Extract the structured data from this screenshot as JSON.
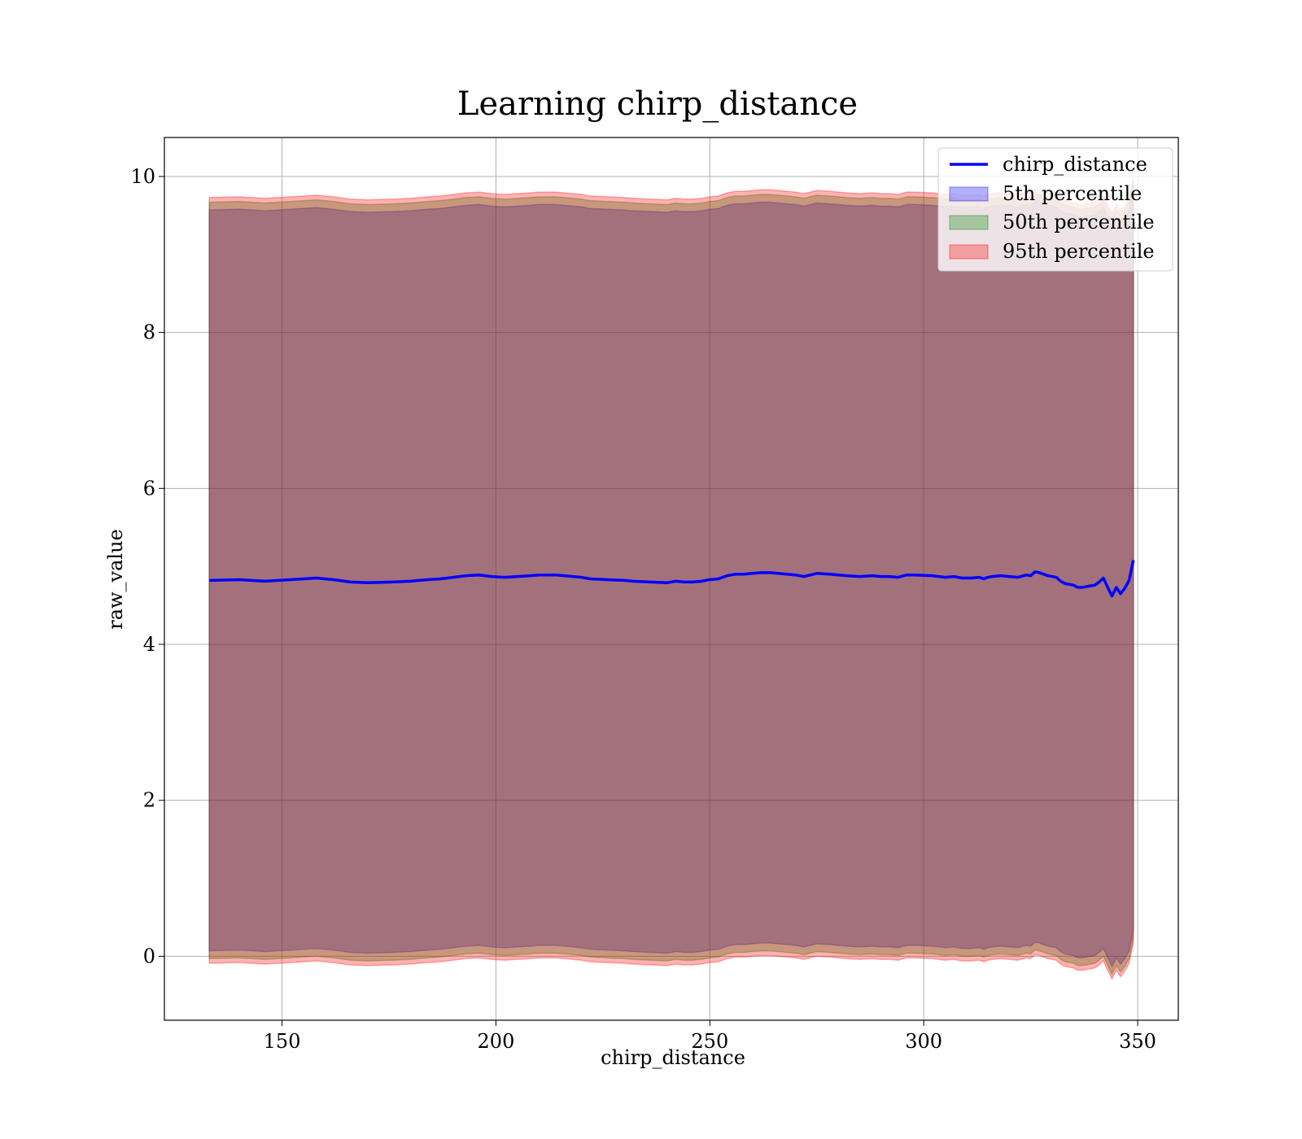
{
  "chart_data": {
    "type": "area",
    "title": "Learning chirp_distance",
    "xlabel": "chirp_distance",
    "ylabel": "raw_value",
    "xlim": [
      122.5,
      359.5
    ],
    "ylim": [
      -0.82,
      10.5
    ],
    "xticks": [
      150,
      200,
      250,
      300,
      350
    ],
    "yticks": [
      0,
      2,
      4,
      6,
      8,
      10
    ],
    "grid": true,
    "legend_position": "top-right",
    "x": [
      133,
      140,
      146,
      152,
      158,
      162,
      166,
      170,
      176,
      180,
      184,
      187,
      190,
      193,
      196,
      199,
      202,
      205,
      208,
      210,
      214,
      216,
      218,
      220,
      222,
      226,
      230,
      232,
      236,
      240,
      242,
      244,
      246,
      248,
      250,
      252,
      254,
      256,
      258,
      260,
      262,
      264,
      266,
      268,
      270,
      272,
      275,
      278,
      282,
      285,
      288,
      290,
      292,
      294,
      296,
      298,
      302,
      305,
      307,
      309,
      311,
      313,
      314,
      315,
      316,
      318,
      320,
      322,
      324,
      325,
      326,
      327,
      329,
      331,
      332,
      333,
      335,
      336,
      337,
      338,
      339,
      340,
      341,
      342,
      343,
      344,
      345,
      346,
      347,
      348,
      349
    ],
    "series": [
      {
        "name": "chirp_distance",
        "kind": "line",
        "color": "#0000ff",
        "values": [
          4.82,
          4.83,
          4.81,
          4.83,
          4.85,
          4.83,
          4.8,
          4.79,
          4.8,
          4.81,
          4.83,
          4.84,
          4.86,
          4.88,
          4.89,
          4.87,
          4.86,
          4.87,
          4.88,
          4.89,
          4.89,
          4.88,
          4.87,
          4.86,
          4.84,
          4.83,
          4.82,
          4.81,
          4.8,
          4.79,
          4.81,
          4.8,
          4.8,
          4.81,
          4.83,
          4.84,
          4.88,
          4.9,
          4.9,
          4.91,
          4.92,
          4.92,
          4.91,
          4.9,
          4.89,
          4.87,
          4.91,
          4.9,
          4.88,
          4.87,
          4.88,
          4.87,
          4.87,
          4.86,
          4.89,
          4.89,
          4.88,
          4.86,
          4.87,
          4.85,
          4.85,
          4.86,
          4.84,
          4.86,
          4.87,
          4.88,
          4.87,
          4.86,
          4.89,
          4.88,
          4.93,
          4.92,
          4.88,
          4.86,
          4.81,
          4.78,
          4.76,
          4.73,
          4.73,
          4.74,
          4.75,
          4.76,
          4.8,
          4.85,
          4.73,
          4.62,
          4.73,
          4.65,
          4.72,
          4.82,
          5.08
        ]
      },
      {
        "name": "5th percentile",
        "kind": "band",
        "color": "#0000ff",
        "lower": [
          0.07,
          0.08,
          0.06,
          0.08,
          0.1,
          0.08,
          0.05,
          0.04,
          0.05,
          0.06,
          0.08,
          0.09,
          0.11,
          0.13,
          0.14,
          0.12,
          0.11,
          0.12,
          0.13,
          0.14,
          0.14,
          0.13,
          0.12,
          0.11,
          0.09,
          0.08,
          0.07,
          0.06,
          0.05,
          0.04,
          0.06,
          0.05,
          0.05,
          0.06,
          0.08,
          0.09,
          0.13,
          0.15,
          0.15,
          0.16,
          0.17,
          0.17,
          0.16,
          0.15,
          0.14,
          0.12,
          0.16,
          0.15,
          0.13,
          0.12,
          0.13,
          0.12,
          0.12,
          0.11,
          0.14,
          0.14,
          0.13,
          0.11,
          0.12,
          0.1,
          0.1,
          0.11,
          0.09,
          0.11,
          0.12,
          0.13,
          0.12,
          0.11,
          0.14,
          0.13,
          0.18,
          0.17,
          0.13,
          0.11,
          0.06,
          0.03,
          0.01,
          -0.02,
          -0.02,
          -0.01,
          0.0,
          0.01,
          0.05,
          0.1,
          -0.02,
          -0.13,
          -0.02,
          -0.1,
          -0.03,
          0.07,
          0.33
        ],
        "upper": [
          9.57,
          9.58,
          9.56,
          9.58,
          9.6,
          9.58,
          9.55,
          9.54,
          9.55,
          9.56,
          9.58,
          9.59,
          9.61,
          9.63,
          9.64,
          9.62,
          9.61,
          9.62,
          9.63,
          9.64,
          9.64,
          9.63,
          9.62,
          9.61,
          9.59,
          9.58,
          9.57,
          9.56,
          9.55,
          9.54,
          9.56,
          9.55,
          9.55,
          9.56,
          9.58,
          9.59,
          9.63,
          9.65,
          9.65,
          9.66,
          9.67,
          9.67,
          9.66,
          9.65,
          9.64,
          9.62,
          9.66,
          9.65,
          9.63,
          9.62,
          9.63,
          9.62,
          9.62,
          9.61,
          9.64,
          9.64,
          9.63,
          9.61,
          9.62,
          9.6,
          9.6,
          9.61,
          9.59,
          9.61,
          9.62,
          9.63,
          9.62,
          9.61,
          9.64,
          9.63,
          9.68,
          9.67,
          9.63,
          9.61,
          9.56,
          9.53,
          9.51,
          9.48,
          9.48,
          9.49,
          9.5,
          9.51,
          9.55,
          9.6,
          9.48,
          9.37,
          9.48,
          9.4,
          9.47,
          9.57,
          9.83
        ]
      },
      {
        "name": "50th percentile",
        "kind": "band",
        "color": "#008000",
        "lower": [
          -0.03,
          -0.02,
          -0.04,
          -0.02,
          0.0,
          -0.02,
          -0.05,
          -0.06,
          -0.05,
          -0.04,
          -0.02,
          -0.01,
          0.01,
          0.03,
          0.04,
          0.02,
          0.01,
          0.02,
          0.03,
          0.04,
          0.04,
          0.03,
          0.02,
          0.01,
          -0.01,
          -0.02,
          -0.03,
          -0.04,
          -0.05,
          -0.06,
          -0.04,
          -0.05,
          -0.05,
          -0.04,
          -0.02,
          -0.01,
          0.03,
          0.05,
          0.05,
          0.06,
          0.07,
          0.07,
          0.06,
          0.05,
          0.04,
          0.02,
          0.06,
          0.05,
          0.03,
          0.02,
          0.03,
          0.02,
          0.02,
          0.01,
          0.04,
          0.04,
          0.03,
          0.01,
          0.02,
          0.0,
          0.0,
          0.01,
          -0.01,
          0.01,
          0.02,
          0.03,
          0.02,
          0.01,
          0.04,
          0.03,
          0.08,
          0.07,
          0.03,
          0.01,
          -0.04,
          -0.07,
          -0.09,
          -0.12,
          -0.12,
          -0.11,
          -0.1,
          -0.09,
          -0.05,
          0.0,
          -0.12,
          -0.23,
          -0.12,
          -0.2,
          -0.13,
          -0.03,
          0.23
        ],
        "upper": [
          9.67,
          9.68,
          9.66,
          9.68,
          9.7,
          9.68,
          9.65,
          9.64,
          9.65,
          9.66,
          9.68,
          9.69,
          9.71,
          9.73,
          9.74,
          9.72,
          9.71,
          9.72,
          9.73,
          9.74,
          9.74,
          9.73,
          9.72,
          9.71,
          9.69,
          9.68,
          9.67,
          9.66,
          9.65,
          9.64,
          9.66,
          9.65,
          9.65,
          9.66,
          9.68,
          9.69,
          9.73,
          9.75,
          9.75,
          9.76,
          9.77,
          9.77,
          9.76,
          9.75,
          9.74,
          9.72,
          9.76,
          9.75,
          9.73,
          9.72,
          9.73,
          9.72,
          9.72,
          9.71,
          9.74,
          9.74,
          9.73,
          9.71,
          9.72,
          9.7,
          9.7,
          9.71,
          9.69,
          9.71,
          9.72,
          9.73,
          9.72,
          9.71,
          9.74,
          9.73,
          9.78,
          9.77,
          9.73,
          9.71,
          9.66,
          9.63,
          9.61,
          9.58,
          9.58,
          9.59,
          9.6,
          9.61,
          9.65,
          9.7,
          9.58,
          9.47,
          9.58,
          9.5,
          9.57,
          9.67,
          9.93
        ]
      },
      {
        "name": "95th percentile",
        "kind": "band",
        "color": "#ff0000",
        "lower": [
          -0.09,
          -0.08,
          -0.1,
          -0.08,
          -0.06,
          -0.08,
          -0.11,
          -0.12,
          -0.11,
          -0.1,
          -0.08,
          -0.07,
          -0.05,
          -0.03,
          -0.02,
          -0.04,
          -0.05,
          -0.04,
          -0.03,
          -0.02,
          -0.02,
          -0.03,
          -0.04,
          -0.05,
          -0.07,
          -0.08,
          -0.09,
          -0.1,
          -0.11,
          -0.12,
          -0.1,
          -0.11,
          -0.11,
          -0.1,
          -0.08,
          -0.07,
          -0.03,
          -0.01,
          -0.01,
          0.0,
          0.01,
          0.01,
          0.0,
          -0.01,
          -0.02,
          -0.04,
          0.0,
          -0.01,
          -0.03,
          -0.04,
          -0.03,
          -0.04,
          -0.04,
          -0.05,
          -0.02,
          -0.02,
          -0.03,
          -0.05,
          -0.04,
          -0.06,
          -0.06,
          -0.05,
          -0.07,
          -0.05,
          -0.04,
          -0.03,
          -0.04,
          -0.05,
          -0.02,
          -0.03,
          0.02,
          0.01,
          -0.03,
          -0.05,
          -0.1,
          -0.13,
          -0.15,
          -0.18,
          -0.18,
          -0.17,
          -0.16,
          -0.15,
          -0.11,
          -0.06,
          -0.18,
          -0.29,
          -0.18,
          -0.26,
          -0.19,
          -0.09,
          0.17
        ],
        "upper": [
          9.73,
          9.74,
          9.72,
          9.74,
          9.76,
          9.74,
          9.71,
          9.7,
          9.71,
          9.72,
          9.74,
          9.75,
          9.77,
          9.79,
          9.8,
          9.78,
          9.77,
          9.78,
          9.79,
          9.8,
          9.8,
          9.79,
          9.78,
          9.77,
          9.75,
          9.74,
          9.73,
          9.72,
          9.71,
          9.7,
          9.72,
          9.71,
          9.71,
          9.72,
          9.74,
          9.75,
          9.79,
          9.81,
          9.81,
          9.82,
          9.83,
          9.83,
          9.82,
          9.81,
          9.8,
          9.78,
          9.82,
          9.81,
          9.79,
          9.78,
          9.79,
          9.78,
          9.78,
          9.77,
          9.8,
          9.8,
          9.79,
          9.77,
          9.78,
          9.76,
          9.76,
          9.77,
          9.75,
          9.77,
          9.78,
          9.79,
          9.78,
          9.77,
          9.8,
          9.79,
          9.84,
          9.83,
          9.79,
          9.77,
          9.72,
          9.69,
          9.67,
          9.64,
          9.64,
          9.65,
          9.66,
          9.67,
          9.71,
          9.76,
          9.64,
          9.53,
          9.64,
          9.56,
          9.63,
          9.73,
          9.99
        ]
      }
    ]
  }
}
